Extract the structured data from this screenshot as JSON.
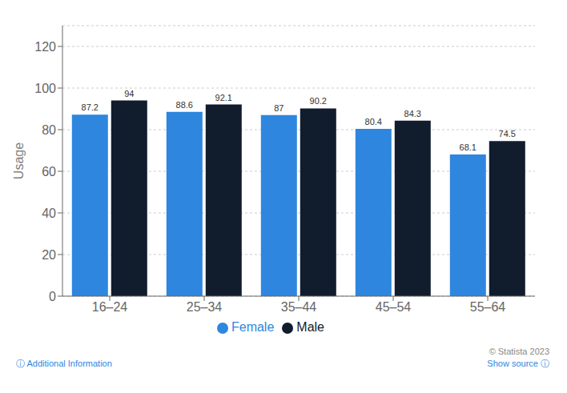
{
  "chart_data": {
    "type": "bar",
    "categories": [
      "16–24",
      "25–34",
      "35–44",
      "45–54",
      "55–64"
    ],
    "series": [
      {
        "name": "Female",
        "color": "#2e86de",
        "values": [
          87.2,
          88.6,
          87.0,
          80.4,
          68.1
        ]
      },
      {
        "name": "Male",
        "color": "#111c2d",
        "values": [
          94.0,
          92.1,
          90.2,
          84.3,
          74.5
        ]
      }
    ],
    "ylabel": "Usage",
    "ylim": [
      0,
      130
    ],
    "yticks": [
      0,
      20,
      40,
      60,
      80,
      100,
      120
    ],
    "grid": true,
    "data_labels": true,
    "legend": "bottom",
    "annotations": [
      "ⓘ Additional Information",
      "© Statista 2023",
      "Show source ⓘ"
    ]
  }
}
